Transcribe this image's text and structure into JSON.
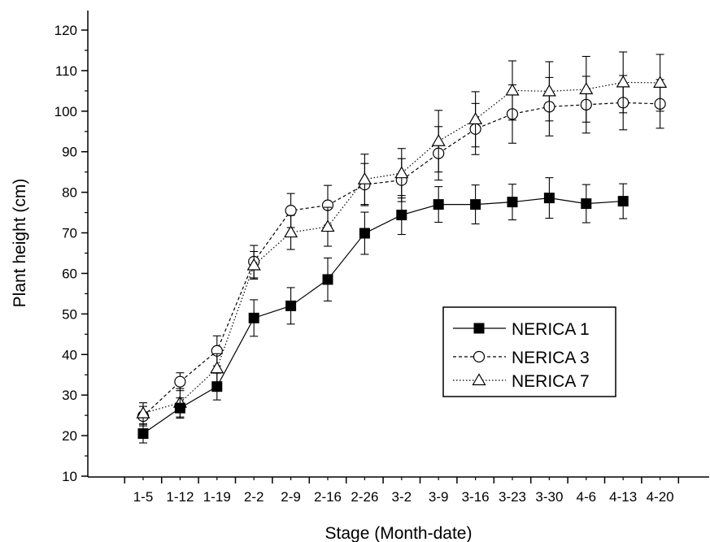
{
  "chart_data": {
    "type": "line",
    "xlabel": "Stage (Month-date)",
    "ylabel": "Plant height (cm)",
    "ylim": [
      10,
      120
    ],
    "yticks": [
      10,
      20,
      30,
      40,
      50,
      60,
      70,
      80,
      90,
      100,
      110,
      120
    ],
    "categories": [
      "1-5",
      "1-12",
      "1-19",
      "2-2",
      "2-9",
      "2-16",
      "2-26",
      "3-2",
      "3-9",
      "3-16",
      "3-23",
      "3-30",
      "4-6",
      "4-13",
      "4-20"
    ],
    "grid": false,
    "legend_position": "center-right",
    "series": [
      {
        "name": "NERICA 1",
        "marker": "filled-square",
        "line_style": "solid",
        "values": [
          20.5,
          26.8,
          32.1,
          49.0,
          52.0,
          58.5,
          69.9,
          74.4,
          77.0,
          77.0,
          77.6,
          78.6,
          77.2,
          77.8,
          null
        ],
        "errors": [
          2.3,
          2.5,
          3.3,
          4.5,
          4.5,
          5.3,
          5.2,
          4.8,
          4.4,
          4.8,
          4.4,
          5.0,
          4.7,
          4.3,
          null
        ]
      },
      {
        "name": "NERICA 3",
        "marker": "open-circle",
        "line_style": "dashed",
        "values": [
          24.8,
          33.3,
          40.9,
          62.9,
          75.5,
          76.8,
          81.9,
          83.0,
          89.6,
          95.6,
          99.3,
          101.1,
          101.6,
          102.1,
          101.8
        ],
        "errors": [
          2.4,
          2.2,
          3.7,
          4.0,
          4.2,
          4.9,
          5.2,
          5.3,
          6.6,
          6.3,
          7.2,
          7.2,
          7.0,
          6.7,
          6.0
        ]
      },
      {
        "name": "NERICA 7",
        "marker": "open-triangle",
        "line_style": "dotted",
        "values": [
          25.5,
          28.1,
          36.6,
          62.0,
          70.1,
          71.5,
          83.2,
          84.7,
          92.6,
          98.0,
          105.1,
          104.9,
          105.4,
          107.1,
          107.0
        ],
        "errors": [
          2.6,
          3.5,
          3.6,
          3.4,
          4.2,
          4.8,
          6.2,
          6.1,
          7.6,
          6.8,
          7.3,
          7.3,
          8.1,
          7.5,
          7.0
        ]
      }
    ]
  }
}
